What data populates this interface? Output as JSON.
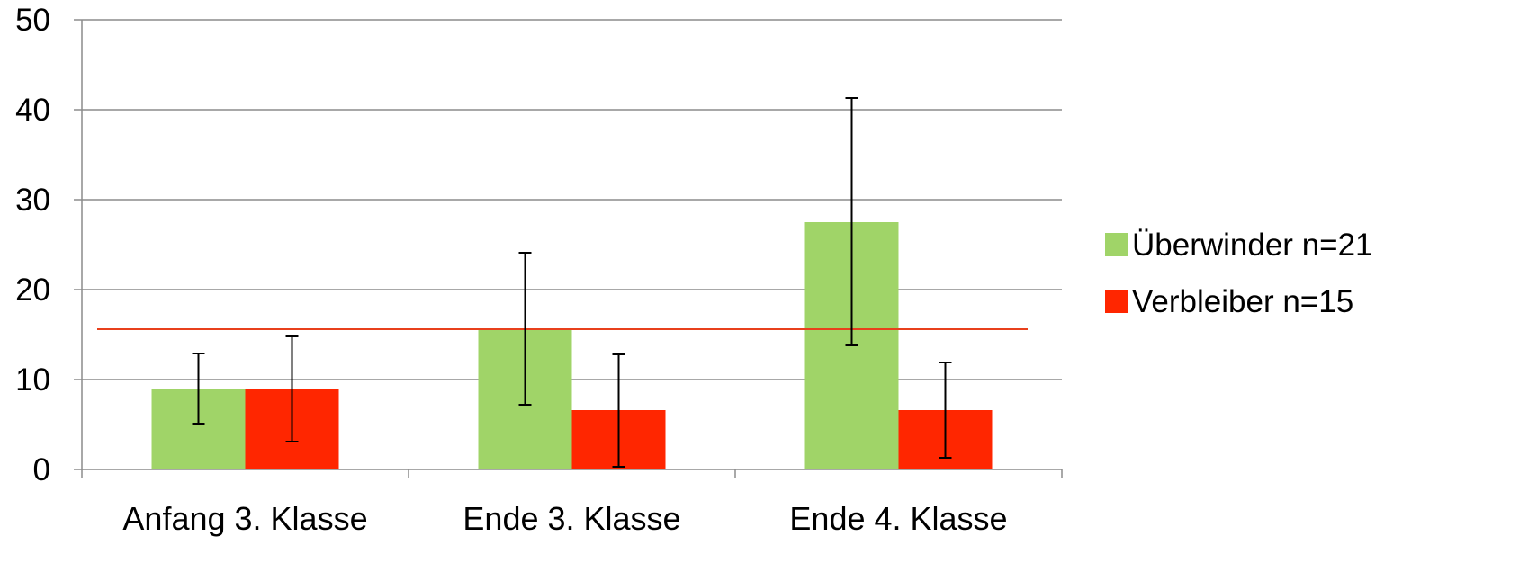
{
  "chart_data": {
    "type": "bar",
    "title": "",
    "xlabel": "",
    "ylabel": "",
    "categories": [
      "Anfang 3. Klasse",
      "Ende 3. Klasse",
      "Ende 4. Klasse"
    ],
    "ylim": [
      0,
      50
    ],
    "yticks": [
      0,
      10,
      20,
      30,
      40,
      50
    ],
    "grid": true,
    "legend_position": "right",
    "series": [
      {
        "name": "Überwinder n=21",
        "color": "#a0d468",
        "values": [
          9.0,
          15.7,
          27.5
        ],
        "error_low": [
          5.1,
          7.2,
          13.8
        ],
        "error_high": [
          12.9,
          24.1,
          41.3
        ]
      },
      {
        "name": "Verbleiber n=15",
        "color": "#ff2600",
        "values": [
          8.9,
          6.6,
          6.6
        ],
        "error_low": [
          3.1,
          0.3,
          1.3
        ],
        "error_high": [
          14.8,
          12.8,
          11.9
        ]
      }
    ],
    "reference_line": {
      "value": 15.6,
      "color": "#e8401c"
    }
  }
}
